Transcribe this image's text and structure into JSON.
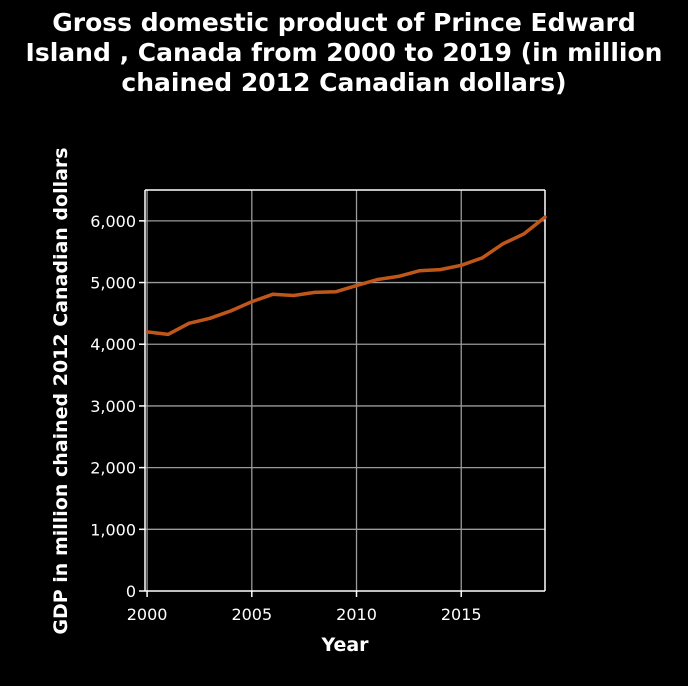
{
  "chart_data": {
    "type": "line",
    "title_lines": [
      "Gross domestic product of Prince Edward",
      "Island , Canada from 2000 to 2019 (in million",
      "chained 2012 Canadian dollars)"
    ],
    "xlabel": "Year",
    "ylabel": "GDP in million chained 2012 Canadian dollars",
    "xlim": [
      1999.9,
      2019
    ],
    "ylim": [
      0,
      6500
    ],
    "x_ticks": [
      2000,
      2005,
      2010,
      2015
    ],
    "x_tick_labels": [
      "2000",
      "2005",
      "2010",
      "2015"
    ],
    "y_ticks": [
      0,
      1000,
      2000,
      3000,
      4000,
      5000,
      6000
    ],
    "y_tick_labels": [
      "0",
      "1,000",
      "2,000",
      "3,000",
      "4,000",
      "5,000",
      "6,000"
    ],
    "grid": true,
    "x": [
      2000,
      2001,
      2002,
      2003,
      2004,
      2005,
      2006,
      2007,
      2008,
      2009,
      2010,
      2011,
      2012,
      2013,
      2014,
      2015,
      2016,
      2017,
      2018,
      2019
    ],
    "series": [
      {
        "values": [
          4200,
          4160,
          4340,
          4420,
          4540,
          4690,
          4810,
          4790,
          4840,
          4850,
          4950,
          5050,
          5100,
          5190,
          5210,
          5280,
          5400,
          5630,
          5790,
          6060
        ],
        "color": "#c0571a"
      }
    ],
    "colors": {
      "background": "#000000",
      "plot_background": "#000000",
      "grid": "#9a9a9a",
      "axis": "#ffffff",
      "text": "#ffffff"
    }
  }
}
